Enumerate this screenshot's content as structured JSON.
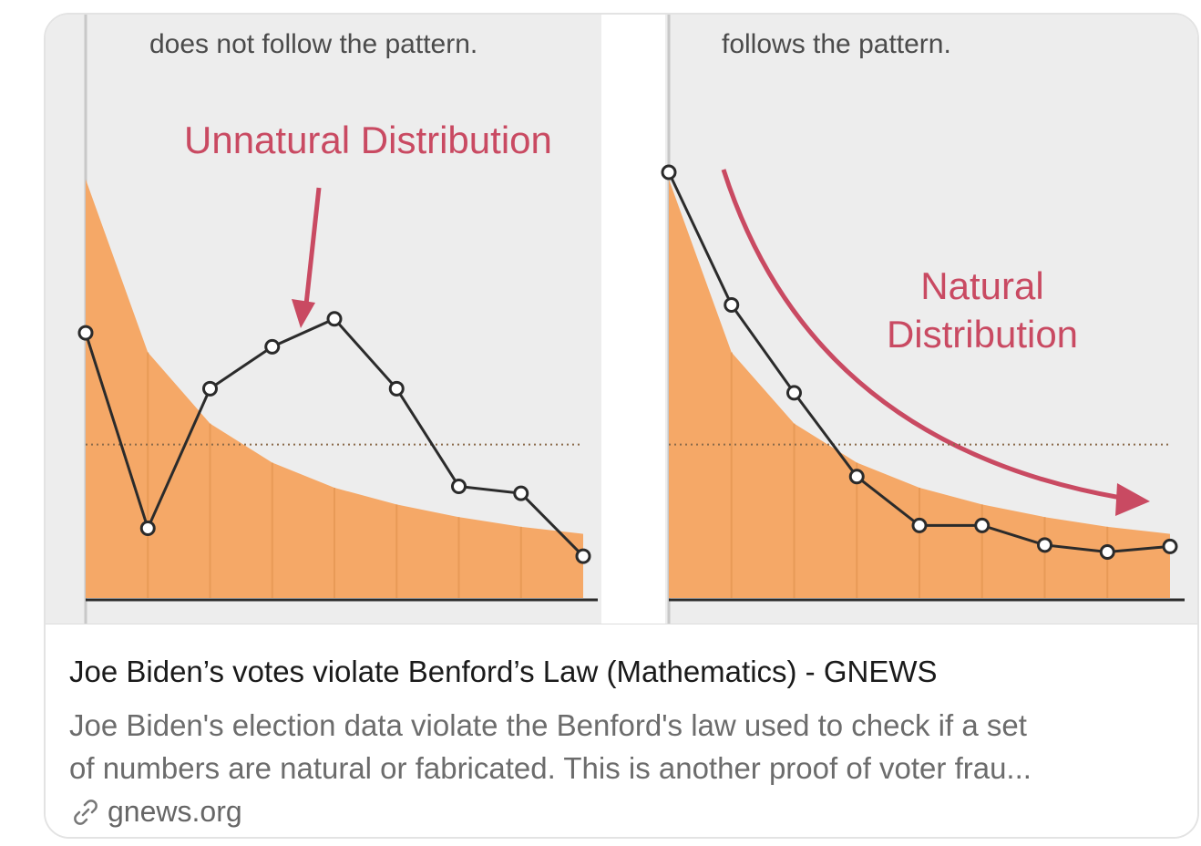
{
  "card": {
    "title": "Joe Biden’s votes violate Benford’s Law (Mathematics) - GNEWS",
    "description_lines": [
      "Joe Biden's election data violate the Benford's law used to check if a set",
      "of numbers are natural or fabricated. This is another proof of voter frau..."
    ],
    "domain": "gnews.org",
    "link_icon": "link-icon"
  },
  "colors": {
    "area_fill": "#f5a867",
    "line": "#2b2b2b",
    "annotation_red": "#c94a62",
    "panel_bg": "#ededed"
  },
  "chart_data": [
    {
      "type": "line",
      "title": "does not follow the pattern.",
      "annotation": "Unnatural Distribution",
      "x": [
        1,
        2,
        3,
        4,
        5,
        6,
        7,
        8,
        9
      ],
      "series": [
        {
          "values": [
            0.19,
            0.05,
            0.15,
            0.18,
            0.2,
            0.15,
            0.08,
            0.075,
            0.03
          ]
        },
        {
          "values": [
            0.3,
            0.176,
            0.125,
            0.097,
            0.079,
            0.067,
            0.058,
            0.051,
            0.046
          ]
        }
      ],
      "ylim": [
        0,
        0.32
      ],
      "reference_line": 0.11
    },
    {
      "type": "line",
      "title": "follows the pattern.",
      "annotation": [
        "Natural",
        "Distribution"
      ],
      "x": [
        1,
        2,
        3,
        4,
        5,
        6,
        7,
        8,
        9
      ],
      "series": [
        {
          "values": [
            0.305,
            0.21,
            0.147,
            0.087,
            0.052,
            0.052,
            0.038,
            0.033,
            0.037
          ]
        },
        {
          "values": [
            0.3,
            0.176,
            0.125,
            0.097,
            0.079,
            0.067,
            0.058,
            0.051,
            0.046
          ]
        }
      ],
      "ylim": [
        0,
        0.32
      ],
      "reference_line": 0.11
    }
  ]
}
